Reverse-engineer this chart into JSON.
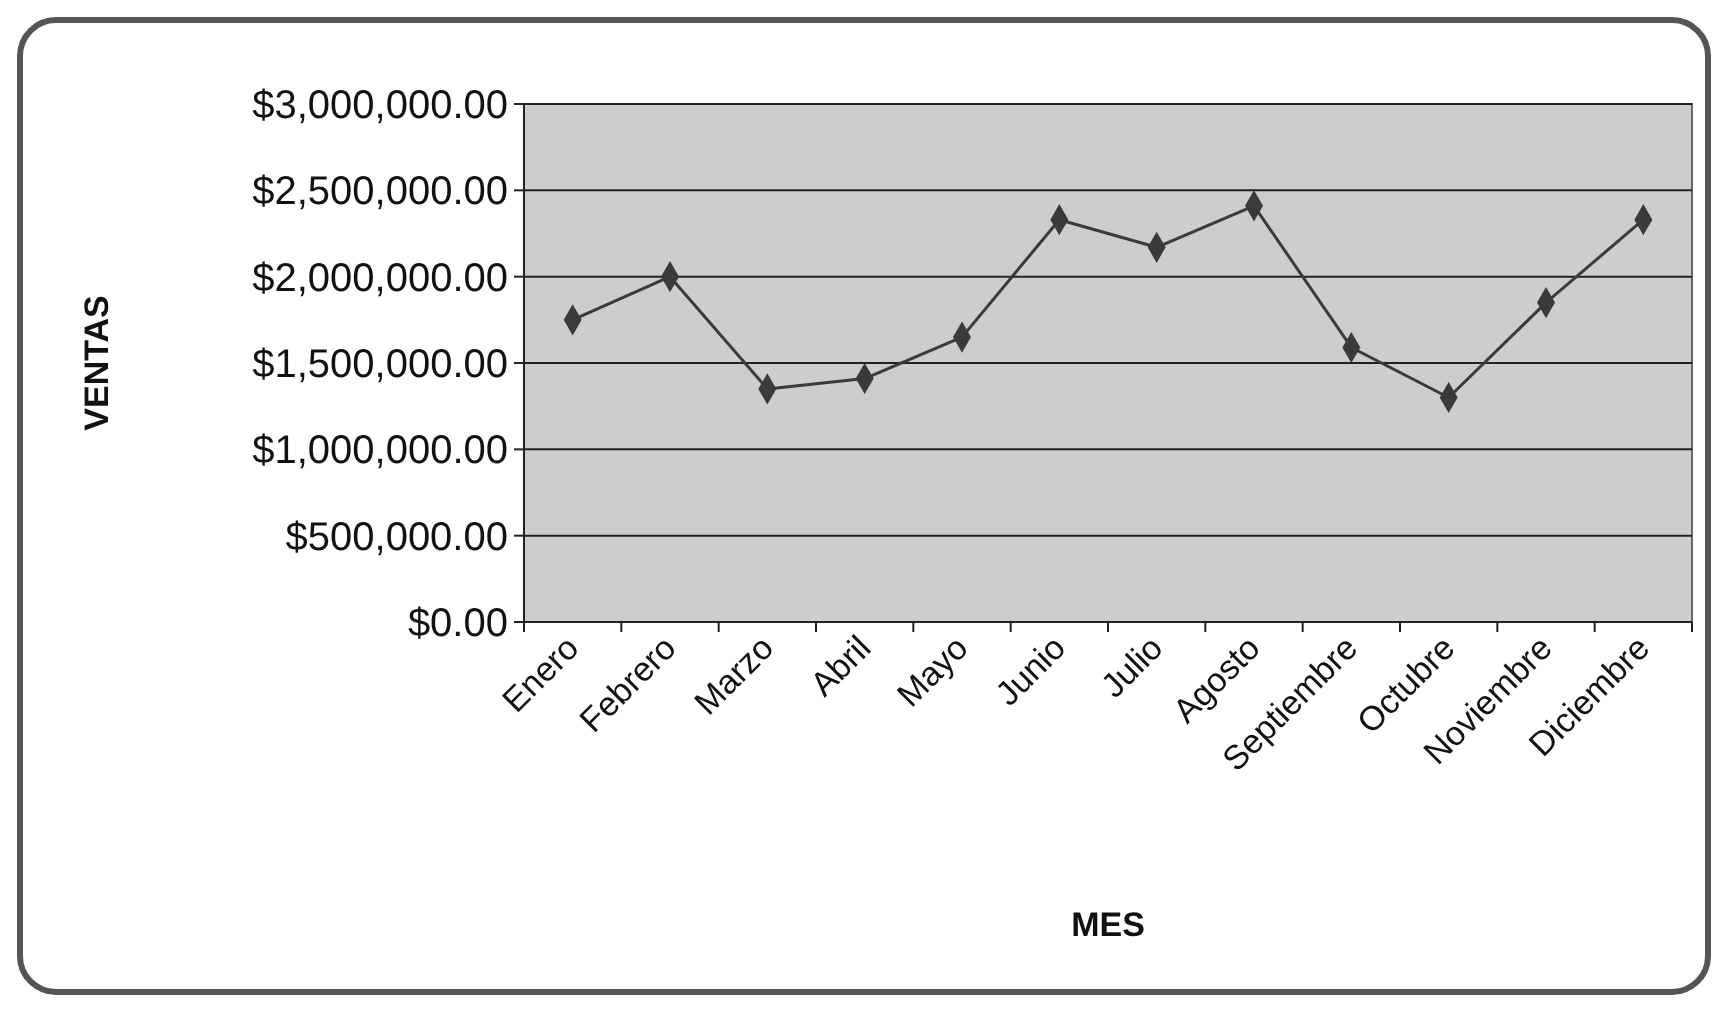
{
  "chart_data": {
    "type": "line",
    "xlabel": "MES",
    "ylabel": "VENTAS",
    "categories": [
      "Enero",
      "Febrero",
      "Marzo",
      "Abril",
      "Mayo",
      "Junio",
      "Julio",
      "Agosto",
      "Septiembre",
      "Octubre",
      "Noviembre",
      "Diciembre"
    ],
    "series": [
      {
        "color": "#3a3a3a",
        "values": [
          1750000,
          2000000,
          1350000,
          1410000,
          1650000,
          2330000,
          2170000,
          2410000,
          1590000,
          1300000,
          1850000,
          2330000
        ]
      }
    ],
    "ylim": [
      0,
      3000000
    ],
    "yticks": [
      {
        "value": 0,
        "label": "$0.00"
      },
      {
        "value": 500000,
        "label": "$500,000.00"
      },
      {
        "value": 1000000,
        "label": "$1,000,000.00"
      },
      {
        "value": 1500000,
        "label": "$1,500,000.00"
      },
      {
        "value": 2000000,
        "label": "$2,000,000.00"
      },
      {
        "value": 2500000,
        "label": "$2,500,000.00"
      },
      {
        "value": 3000000,
        "label": "$3,000,000.00"
      }
    ],
    "grid": "y",
    "marker": "diamond",
    "line_style": "solid"
  }
}
